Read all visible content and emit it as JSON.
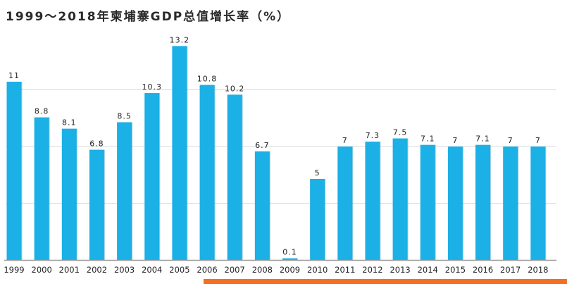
{
  "chart_data": {
    "type": "bar",
    "title": "1999～2018年柬埔寨GDP总值增长率（%）",
    "categories": [
      "1999",
      "2000",
      "2001",
      "2002",
      "2003",
      "2004",
      "2005",
      "2006",
      "2007",
      "2008",
      "2009",
      "2010",
      "2011",
      "2012",
      "2013",
      "2014",
      "2015",
      "2016",
      "2017",
      "2018"
    ],
    "values": [
      11,
      8.8,
      8.1,
      6.8,
      8.5,
      10.3,
      13.2,
      10.8,
      10.2,
      6.7,
      0.1,
      5,
      7,
      7.3,
      7.5,
      7.1,
      7,
      7.1,
      7,
      7
    ],
    "data_labels": [
      "11",
      "8.8",
      "8.1",
      "6.8",
      "8.5",
      "10.3",
      "13.2",
      "10.8",
      "10.2",
      "6.7",
      "0.1",
      "5",
      "7",
      "7.3",
      "7.5",
      "7.1",
      "7",
      "7.1",
      "7",
      "7"
    ],
    "xlabel": "",
    "ylabel": "",
    "ylim": [
      0,
      14
    ],
    "grid": true,
    "legend": "none",
    "colors": {
      "bar": "#1bb0e6",
      "bar_shadow": "#0f83b0",
      "grid": "#d9d9d9",
      "axis": "#9a9a9a",
      "accent_line": "#f36f21",
      "text": "#222222"
    }
  }
}
